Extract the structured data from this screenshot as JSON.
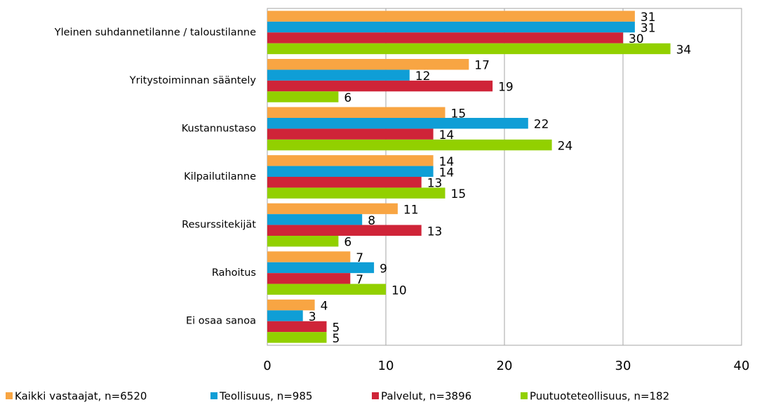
{
  "chart_data": {
    "type": "bar",
    "orientation": "horizontal",
    "categories": [
      "Yleinen suhdannetilanne / taloustilanne",
      "Yritystoiminnan sääntely",
      "Kustannustaso",
      "Kilpailutilanne",
      "Resurssitekijät",
      "Rahoitus",
      "Ei osaa sanoa"
    ],
    "series": [
      {
        "name": "Kaikki vastaajat, n=6520",
        "color": "#f8a543",
        "values": [
          31,
          17,
          15,
          14,
          11,
          7,
          4
        ]
      },
      {
        "name": "Teollisuus, n=985",
        "color": "#0f9ed6",
        "values": [
          31,
          12,
          22,
          14,
          8,
          9,
          3
        ]
      },
      {
        "name": "Palvelut, n=3896",
        "color": "#cf2438",
        "values": [
          30,
          19,
          14,
          13,
          13,
          7,
          5
        ]
      },
      {
        "name": "Puutuoteteollisuus, n=182",
        "color": "#92d000",
        "values": [
          34,
          6,
          24,
          15,
          6,
          10,
          5
        ]
      }
    ],
    "xlim": [
      0,
      40
    ],
    "xticks": [
      0,
      10,
      20,
      30,
      40
    ],
    "grid": true,
    "legend": "bottom"
  }
}
